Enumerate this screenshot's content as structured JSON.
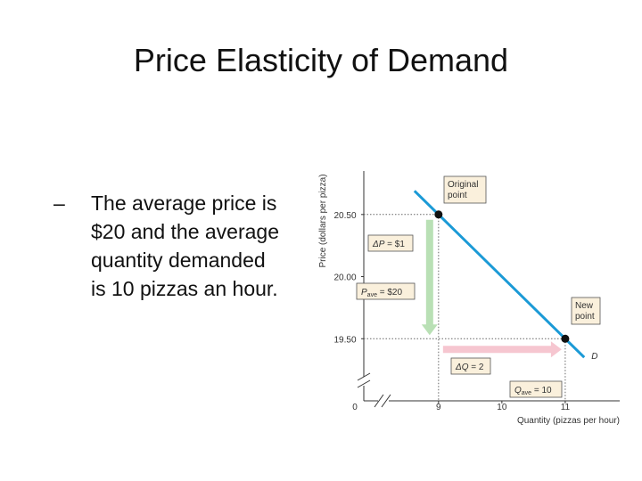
{
  "title": "Price Elasticity of Demand",
  "bullet_lines": [
    "The average price is",
    "$20 and the average",
    "quantity demanded",
    "is 10 pizzas an hour."
  ],
  "chart_data": {
    "type": "line",
    "xlabel": "Quantity (pizzas per hour)",
    "ylabel": "Price (dollars per pizza)",
    "origin_label": "0",
    "xlim": [
      7.82,
      11.86
    ],
    "ylim": [
      19.0,
      20.85
    ],
    "xticks": [
      9,
      10,
      11
    ],
    "yticks": [
      {
        "value": 19.5,
        "label": "19.50"
      },
      {
        "value": 20,
        "label": "20.00"
      },
      {
        "value": 20.5,
        "label": "20.50"
      }
    ],
    "series": [
      {
        "name": "D",
        "color": "#1b9ad6",
        "x": [
          8.62,
          11.3
        ],
        "values": [
          20.69,
          19.35
        ]
      }
    ],
    "points": [
      {
        "label": [
          "Original",
          "point"
        ],
        "x": 9,
        "y": 20.5
      },
      {
        "label": [
          "New",
          "point"
        ],
        "x": 11,
        "y": 19.5
      }
    ],
    "average": {
      "x": 10,
      "y": 20,
      "color": "#c0187f"
    },
    "annotations": [
      {
        "symbol": "ΔP",
        "text": " = $1"
      },
      {
        "symbol": "P",
        "sub": "ave",
        "text": " = $20"
      },
      {
        "symbol": "ΔQ",
        "text": " = 2"
      },
      {
        "symbol": "Q",
        "sub": "ave",
        "text": " = 10"
      }
    ]
  }
}
